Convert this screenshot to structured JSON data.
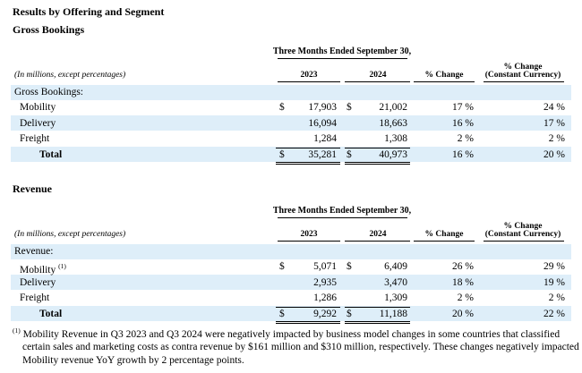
{
  "title": "Results by Offering and Segment",
  "sections": [
    {
      "heading": "Gross Bookings",
      "period_header": "Three Months Ended September 30,",
      "units_note": "(In millions, except percentages)",
      "col_2023": "2023",
      "col_2024": "2024",
      "col_change": "% Change",
      "col_cc_line1": "% Change",
      "col_cc_line2": "(Constant Currency)",
      "group_label": "Gross Bookings:",
      "rows": [
        {
          "label": "Mobility",
          "cur_2023": "$",
          "v2023": "17,903",
          "cur_2024": "$",
          "v2024": "21,002",
          "change": "17 %",
          "cc": "24 %"
        },
        {
          "label": "Delivery",
          "v2023": "16,094",
          "v2024": "18,663",
          "change": "16 %",
          "cc": "17 %"
        },
        {
          "label": "Freight",
          "v2023": "1,284",
          "v2024": "1,308",
          "change": "2 %",
          "cc": "2 %"
        },
        {
          "label": "Total",
          "cur_2023": "$",
          "v2023": "35,281",
          "cur_2024": "$",
          "v2024": "40,973",
          "change": "16 %",
          "cc": "20 %"
        }
      ]
    },
    {
      "heading": "Revenue",
      "period_header": "Three Months Ended September 30,",
      "units_note": "(In millions, except percentages)",
      "col_2023": "2023",
      "col_2024": "2024",
      "col_change": "% Change",
      "col_cc_line1": "% Change",
      "col_cc_line2": "(Constant Currency)",
      "group_label": "Revenue:",
      "rows": [
        {
          "label": "Mobility",
          "marker": "(1)",
          "cur_2023": "$",
          "v2023": "5,071",
          "cur_2024": "$",
          "v2024": "6,409",
          "change": "26 %",
          "cc": "29 %"
        },
        {
          "label": "Delivery",
          "v2023": "2,935",
          "v2024": "3,470",
          "change": "18 %",
          "cc": "19 %"
        },
        {
          "label": "Freight",
          "v2023": "1,286",
          "v2024": "1,309",
          "change": "2 %",
          "cc": "2 %"
        },
        {
          "label": "Total",
          "cur_2023": "$",
          "v2023": "9,292",
          "cur_2024": "$",
          "v2024": "11,188",
          "change": "20 %",
          "cc": "22 %"
        }
      ]
    }
  ],
  "footnote": {
    "marker": "(1)",
    "text": "Mobility Revenue in Q3 2023 and Q3 2024 were negatively impacted by business model changes in some countries that classified certain sales and marketing costs as contra revenue by $161 million and $310 million, respectively. These changes negatively impacted Mobility revenue YoY growth by 2 percentage points."
  }
}
